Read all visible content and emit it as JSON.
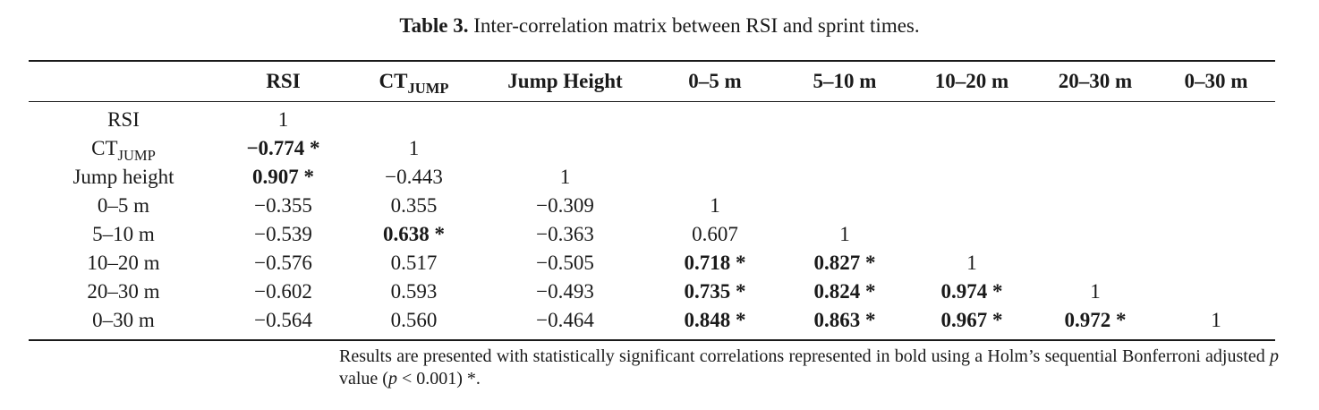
{
  "caption": {
    "label": "Table 3.",
    "text": "Inter-correlation matrix between RSI and sprint times."
  },
  "table": {
    "headers": [
      {
        "text": ""
      },
      {
        "text": "RSI"
      },
      {
        "text": "CT",
        "sub": "JUMP"
      },
      {
        "text": "Jump Height"
      },
      {
        "text": "0–5 m"
      },
      {
        "text": "5–10 m"
      },
      {
        "text": "10–20 m"
      },
      {
        "text": "20–30 m"
      },
      {
        "text": "0–30 m"
      }
    ],
    "rows": [
      {
        "label": "RSI",
        "cells": [
          {
            "v": "1",
            "sig": false
          }
        ]
      },
      {
        "label": "CT",
        "label_sub": "JUMP",
        "cells": [
          {
            "v": "−0.774 *",
            "sig": true
          },
          {
            "v": "1",
            "sig": false
          }
        ]
      },
      {
        "label": "Jump height",
        "cells": [
          {
            "v": "0.907 *",
            "sig": true
          },
          {
            "v": "−0.443",
            "sig": false
          },
          {
            "v": "1",
            "sig": false
          }
        ]
      },
      {
        "label": "0–5 m",
        "cells": [
          {
            "v": "−0.355",
            "sig": false
          },
          {
            "v": "0.355",
            "sig": false
          },
          {
            "v": "−0.309",
            "sig": false
          },
          {
            "v": "1",
            "sig": false
          }
        ]
      },
      {
        "label": "5–10 m",
        "cells": [
          {
            "v": "−0.539",
            "sig": false
          },
          {
            "v": "0.638 *",
            "sig": true
          },
          {
            "v": "−0.363",
            "sig": false
          },
          {
            "v": "0.607",
            "sig": false
          },
          {
            "v": "1",
            "sig": false
          }
        ]
      },
      {
        "label": "10–20 m",
        "cells": [
          {
            "v": "−0.576",
            "sig": false
          },
          {
            "v": "0.517",
            "sig": false
          },
          {
            "v": "−0.505",
            "sig": false
          },
          {
            "v": "0.718 *",
            "sig": true
          },
          {
            "v": "0.827 *",
            "sig": true
          },
          {
            "v": "1",
            "sig": false
          }
        ]
      },
      {
        "label": "20–30 m",
        "cells": [
          {
            "v": "−0.602",
            "sig": false
          },
          {
            "v": "0.593",
            "sig": false
          },
          {
            "v": "−0.493",
            "sig": false
          },
          {
            "v": "0.735 *",
            "sig": true
          },
          {
            "v": "0.824 *",
            "sig": true
          },
          {
            "v": "0.974 *",
            "sig": true
          },
          {
            "v": "1",
            "sig": false
          }
        ]
      },
      {
        "label": "0–30 m",
        "cells": [
          {
            "v": "−0.564",
            "sig": false
          },
          {
            "v": "0.560",
            "sig": false
          },
          {
            "v": "−0.464",
            "sig": false
          },
          {
            "v": "0.848 *",
            "sig": true
          },
          {
            "v": "0.863 *",
            "sig": true
          },
          {
            "v": "0.967 *",
            "sig": true
          },
          {
            "v": "0.972 *",
            "sig": true
          },
          {
            "v": "1",
            "sig": false
          }
        ]
      }
    ]
  },
  "note": {
    "part1": "Results are presented with statistically significant correlations represented in bold using a Holm’s sequential Bonferroni adjusted ",
    "p1": "p",
    "part2": " value (",
    "p2": "p",
    "part3": " < 0.001) *."
  }
}
